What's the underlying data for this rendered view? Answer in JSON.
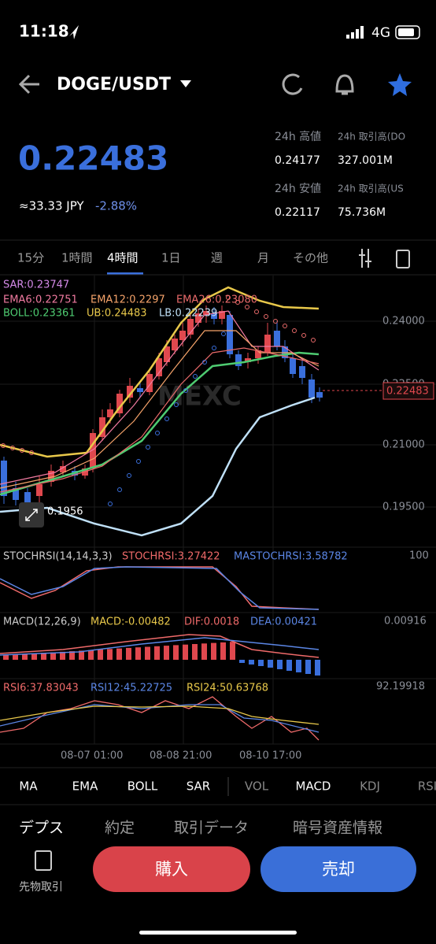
{
  "status": {
    "time": "11:18",
    "network": "4G"
  },
  "header": {
    "pair": "DOGE/USDT"
  },
  "price": {
    "last": "0.22483",
    "jpy": "≈33.33 JPY",
    "change": "-2.88%"
  },
  "stats": {
    "high_label": "24h 高値",
    "high": "0.24177",
    "vol1_label": "24h 取引高(DO",
    "vol1": "327.001M",
    "low_label": "24h 安値",
    "low": "0.22117",
    "vol2_label": "24h 取引高(US",
    "vol2": "75.736M"
  },
  "tabs": [
    "15分",
    "1時間",
    "4時間",
    "1日",
    "週",
    "月",
    "その他"
  ],
  "main": {
    "sar": "SAR:0.23747",
    "ema6": "EMA6:0.22751",
    "ema12": "EMA12:0.2297",
    "ema26": "EMA26:0.23080",
    "boll": "BOLL:0.23361",
    "ub": "UB:0.24483",
    "lb": "LB:0.22239",
    "axis": [
      "0.24000",
      "0.22500",
      "0.21000",
      "0.19500"
    ],
    "current": "0.22483",
    "low_mark": "0.1956"
  },
  "stochrsi": {
    "name": "STOCHRSI(14,14,3,3)",
    "k": "STOCHRSI:3.27422",
    "d": "MASTOCHRSI:3.58782",
    "axis": "100"
  },
  "macd": {
    "name": "MACD(12,26,9)",
    "macd": "MACD:-0.00482",
    "dif": "DIF:0.0018",
    "dea": "DEA:0.00421",
    "axis": "0.00916"
  },
  "rsi": {
    "rsi6": "RSI6:37.83043",
    "rsi12": "RSI12:45.22725",
    "rsi24": "RSI24:50.63768",
    "axis": "92.19918"
  },
  "dates": [
    "08-07 01:00",
    "08-08 21:00",
    "08-10 17:00"
  ],
  "indicators": [
    "MA",
    "EMA",
    "BOLL",
    "SAR",
    "VOL",
    "MACD",
    "KDJ",
    "RSI"
  ],
  "bottom_tabs": [
    "デプス",
    "約定",
    "取引データ",
    "暗号資産情報"
  ],
  "actions": {
    "futures": "先物取引",
    "buy": "購入",
    "sell": "売却"
  }
}
